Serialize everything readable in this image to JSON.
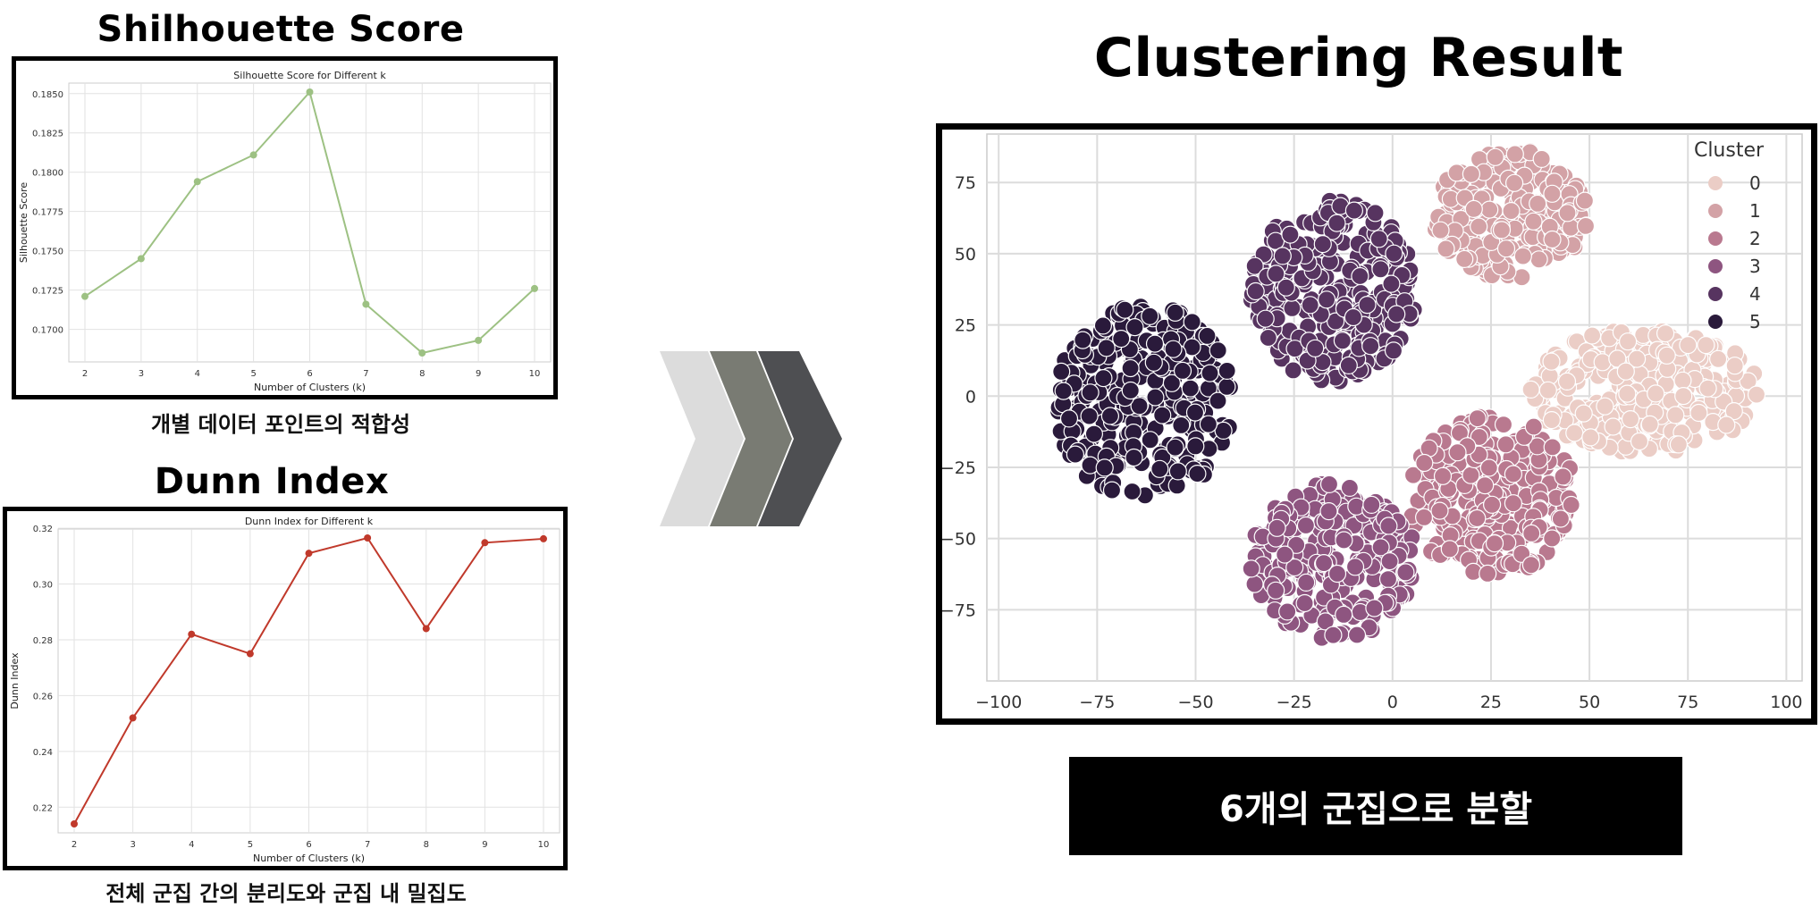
{
  "titles": {
    "silhouette": "Shilhouette Score",
    "dunn": "Dunn Index",
    "clustering": "Clustering Result"
  },
  "captions": {
    "silhouette": "개별 데이터 포인트의 적합성",
    "dunn": "전체 군집 간의 분리도와 군집 내 밀집도"
  },
  "summary": "6개의 군집으로 분할",
  "colors": {
    "silhouette_line": "#9dc183",
    "dunn_line": "#c0392b",
    "chevron_light": "#dcdcdc",
    "chevron_mid": "#797b73",
    "chevron_dark": "#4e4f52",
    "cluster": [
      "#ebcdc6",
      "#d3a2a6",
      "#b9798f",
      "#8e5580",
      "#573460",
      "#2a1a3b"
    ]
  },
  "chart_data": [
    {
      "type": "line",
      "title": "Silhouette Score for Different k",
      "xlabel": "Number of Clusters (k)",
      "ylabel": "Silhouette Score",
      "x": [
        2,
        3,
        4,
        5,
        6,
        7,
        8,
        9,
        10
      ],
      "values": [
        0.1721,
        0.1745,
        0.1794,
        0.1811,
        0.1851,
        0.1716,
        0.1685,
        0.1693,
        0.1726
      ],
      "ylim": [
        0.1685,
        0.1851
      ],
      "yticks": [
        "0.1700",
        "0.1725",
        "0.1750",
        "0.1775",
        "0.1800",
        "0.1825",
        "0.1850"
      ],
      "ytick_values": [
        0.17,
        0.1725,
        0.175,
        0.1775,
        0.18,
        0.1825,
        0.185
      ],
      "grid": true
    },
    {
      "type": "line",
      "title": "Dunn Index for Different k",
      "xlabel": "Number of Clusters (k)",
      "ylabel": "Dunn Index",
      "x": [
        2,
        3,
        4,
        5,
        6,
        7,
        8,
        9,
        10
      ],
      "values": [
        0.214,
        0.252,
        0.282,
        0.275,
        0.311,
        0.3165,
        0.284,
        0.3148,
        0.3162
      ],
      "ylim": [
        0.214,
        0.3165
      ],
      "yticks": [
        "0.22",
        "0.24",
        "0.26",
        "0.28",
        "0.30",
        "0.32"
      ],
      "ytick_values": [
        0.22,
        0.24,
        0.26,
        0.28,
        0.3,
        0.32
      ],
      "grid": true
    },
    {
      "type": "scatter",
      "xlim": [
        -103,
        104
      ],
      "ylim": [
        -100,
        92
      ],
      "xticks": [
        "−100",
        "−75",
        "−50",
        "−25",
        "0",
        "25",
        "50",
        "75",
        "100"
      ],
      "xtick_values": [
        -100,
        -75,
        -50,
        -25,
        0,
        25,
        50,
        75,
        100
      ],
      "yticks": [
        "75",
        "50",
        "25",
        "0",
        "−25",
        "−50",
        "−75"
      ],
      "ytick_values": [
        75,
        50,
        25,
        0,
        -25,
        -50,
        -75
      ],
      "legend": {
        "title": "Cluster",
        "position": "top-right",
        "labels": [
          "0",
          "1",
          "2",
          "3",
          "4",
          "5"
        ]
      },
      "clusters": [
        {
          "label": "0",
          "cx": 64,
          "cy": 2,
          "rx": 29,
          "ry": 22,
          "count": 300
        },
        {
          "label": "1",
          "cx": 30,
          "cy": 64,
          "rx": 20,
          "ry": 23,
          "count": 240
        },
        {
          "label": "2",
          "cx": 25,
          "cy": -35,
          "rx": 22,
          "ry": 28,
          "count": 270
        },
        {
          "label": "3",
          "cx": -15,
          "cy": -58,
          "rx": 21,
          "ry": 28,
          "count": 240
        },
        {
          "label": "4",
          "cx": -15,
          "cy": 37,
          "rx": 21,
          "ry": 32,
          "count": 270
        },
        {
          "label": "5",
          "cx": -63,
          "cy": -2,
          "rx": 23,
          "ry": 34,
          "count": 290
        }
      ],
      "grid": true
    }
  ]
}
